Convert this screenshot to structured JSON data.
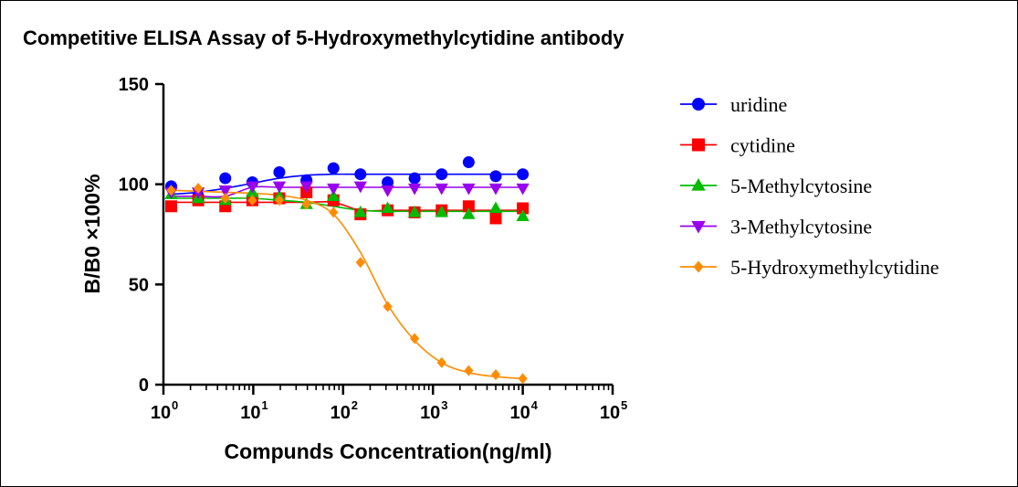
{
  "chart_data": {
    "type": "scatter",
    "title": "Competitive ELISA Assay of 5-Hydroxymethylcytidine antibody",
    "xlabel": "Compunds Concentration(ng/ml)",
    "ylabel": "B/B0 ×100%",
    "x_scale": "log",
    "xlim": [
      1,
      100000
    ],
    "ylim": [
      0,
      150
    ],
    "x_ticks": [
      {
        "base": "10",
        "exp": "0"
      },
      {
        "base": "10",
        "exp": "1"
      },
      {
        "base": "10",
        "exp": "2"
      },
      {
        "base": "10",
        "exp": "3"
      },
      {
        "base": "10",
        "exp": "4"
      },
      {
        "base": "10",
        "exp": "5"
      }
    ],
    "y_ticks": [
      "0",
      "50",
      "100",
      "150"
    ],
    "y_tick_values": [
      0,
      50,
      100,
      150
    ],
    "x": [
      1.22,
      2.44,
      4.88,
      9.77,
      19.5,
      39.1,
      78.1,
      156,
      313,
      625,
      1250,
      2500,
      5000,
      10000
    ],
    "legend_position": "right",
    "series": [
      {
        "name": "uridine",
        "color": "#0000ff",
        "marker": "circle",
        "values": [
          99,
          94,
          103,
          101,
          106,
          102,
          108,
          105,
          101,
          103,
          105,
          111,
          104,
          105
        ],
        "fit": [
          95,
          96,
          98,
          100.5,
          103,
          104.5,
          105,
          105,
          105,
          105,
          105,
          105,
          105,
          105
        ]
      },
      {
        "name": "cytidine",
        "color": "#ff0000",
        "marker": "square",
        "values": [
          89,
          92,
          89,
          92,
          93,
          96,
          92,
          85,
          87,
          86,
          87,
          89,
          83,
          88
        ],
        "fit": [
          91,
          91,
          91,
          91,
          91,
          91,
          91,
          87,
          87,
          87,
          87,
          87,
          87,
          87
        ]
      },
      {
        "name": "5-Methylcytosine",
        "color": "#00bb00",
        "marker": "triangle-up",
        "values": [
          95,
          93,
          92,
          96,
          94,
          90,
          94,
          86,
          88,
          86,
          86,
          85,
          88,
          84
        ],
        "fit": [
          93,
          93,
          93,
          93,
          92,
          91,
          89,
          87,
          86.5,
          86.5,
          86.5,
          86.5,
          86.5,
          86.5
        ]
      },
      {
        "name": "3-Methylcytosine",
        "color": "#9900ee",
        "marker": "triangle-down",
        "values": [
          96,
          96,
          97,
          99,
          99,
          99,
          98,
          99,
          97,
          98,
          98,
          98,
          98,
          98
        ],
        "fit": [
          94,
          94,
          94,
          98.5,
          98.5,
          98.5,
          98.5,
          98.5,
          98.5,
          98.5,
          98.5,
          98.5,
          98.5,
          98.5
        ]
      },
      {
        "name": "5-Hydroxymethylcytidine",
        "color": "#ff8c00",
        "marker": "diamond",
        "values": [
          97,
          98,
          93,
          92,
          92,
          90,
          86,
          61,
          39,
          23,
          11,
          7,
          5,
          3
        ],
        "fit": [
          97,
          96.5,
          96,
          95.5,
          94.5,
          92,
          85,
          66,
          40,
          22,
          11,
          6,
          4,
          3
        ]
      }
    ]
  }
}
